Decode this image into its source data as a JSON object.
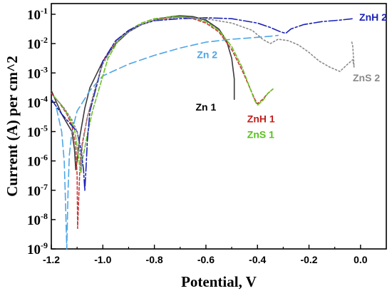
{
  "chart_data": {
    "type": "line",
    "xlabel": "Potential, V",
    "ylabel": "Current (A) per cm^2",
    "yscale": "log",
    "xlim": [
      -1.2,
      0.1
    ],
    "ylim_exp": [
      -9,
      -1
    ],
    "xticks": [
      {
        "value": -1.2,
        "label": "-1.2"
      },
      {
        "value": -1.0,
        "label": "-1.0"
      },
      {
        "value": -0.8,
        "label": "-0.8"
      },
      {
        "value": -0.6,
        "label": "-0.6"
      },
      {
        "value": -0.4,
        "label": "-0.4"
      },
      {
        "value": -0.2,
        "label": "-0.2"
      },
      {
        "value": 0.0,
        "label": "0.0"
      }
    ],
    "yticks": [
      {
        "exp": -1,
        "base": "10",
        "sup": "-1"
      },
      {
        "exp": -2,
        "base": "10",
        "sup": "-2"
      },
      {
        "exp": -3,
        "base": "10",
        "sup": "-3"
      },
      {
        "exp": -4,
        "base": "10",
        "sup": "-4"
      },
      {
        "exp": -5,
        "base": "10",
        "sup": "-5"
      },
      {
        "exp": -6,
        "base": "10",
        "sup": "-6"
      },
      {
        "exp": -7,
        "base": "10",
        "sup": "-7"
      },
      {
        "exp": -8,
        "base": "10",
        "sup": "-8"
      },
      {
        "exp": -9,
        "base": "10",
        "sup": "-9"
      }
    ],
    "grid": false,
    "series": [
      {
        "name": "Zn 1",
        "color": "#3a3a3a",
        "dash": "solid",
        "points": [
          [
            -1.2,
            -3.6
          ],
          [
            -1.18,
            -4.0
          ],
          [
            -1.16,
            -4.4
          ],
          [
            -1.14,
            -4.7
          ],
          [
            -1.12,
            -5.0
          ],
          [
            -1.11,
            -5.6
          ],
          [
            -1.105,
            -6.3
          ],
          [
            -1.1,
            -6.0
          ],
          [
            -1.09,
            -5.2
          ],
          [
            -1.07,
            -4.2
          ],
          [
            -1.05,
            -3.5
          ],
          [
            -1.0,
            -2.6
          ],
          [
            -0.95,
            -2.0
          ],
          [
            -0.9,
            -1.6
          ],
          [
            -0.85,
            -1.35
          ],
          [
            -0.8,
            -1.2
          ],
          [
            -0.75,
            -1.1
          ],
          [
            -0.7,
            -1.05
          ],
          [
            -0.65,
            -1.08
          ],
          [
            -0.6,
            -1.2
          ],
          [
            -0.55,
            -1.5
          ],
          [
            -0.52,
            -1.9
          ],
          [
            -0.5,
            -2.5
          ],
          [
            -0.49,
            -3.2
          ],
          [
            -0.49,
            -3.9
          ]
        ]
      },
      {
        "name": "Zn 2",
        "color": "#4ea6e6",
        "dash": "10,5",
        "points": [
          [
            -1.18,
            -4.2
          ],
          [
            -1.16,
            -5.0
          ],
          [
            -1.15,
            -6.0
          ],
          [
            -1.145,
            -7.4
          ],
          [
            -1.14,
            -9.0
          ],
          [
            -1.135,
            -7.0
          ],
          [
            -1.13,
            -5.8
          ],
          [
            -1.12,
            -5.0
          ],
          [
            -1.1,
            -4.3
          ],
          [
            -1.05,
            -3.6
          ],
          [
            -1.0,
            -3.1
          ],
          [
            -0.9,
            -2.7
          ],
          [
            -0.8,
            -2.4
          ],
          [
            -0.7,
            -2.15
          ],
          [
            -0.6,
            -1.95
          ],
          [
            -0.5,
            -1.85
          ],
          [
            -0.42,
            -1.8
          ],
          [
            -0.35,
            -1.75
          ],
          [
            -0.32,
            -1.72
          ]
        ]
      },
      {
        "name": "ZnH 1",
        "color": "#c83a3a",
        "dash": "4,3",
        "points": [
          [
            -1.2,
            -3.7
          ],
          [
            -1.17,
            -4.0
          ],
          [
            -1.14,
            -4.4
          ],
          [
            -1.12,
            -4.8
          ],
          [
            -1.105,
            -5.5
          ],
          [
            -1.1,
            -6.5
          ],
          [
            -1.098,
            -8.3
          ],
          [
            -1.09,
            -6.4
          ],
          [
            -1.08,
            -5.4
          ],
          [
            -1.06,
            -4.5
          ],
          [
            -1.03,
            -3.6
          ],
          [
            -1.0,
            -2.6
          ],
          [
            -0.95,
            -1.9
          ],
          [
            -0.9,
            -1.55
          ],
          [
            -0.85,
            -1.35
          ],
          [
            -0.8,
            -1.2
          ],
          [
            -0.75,
            -1.12
          ],
          [
            -0.7,
            -1.1
          ],
          [
            -0.65,
            -1.15
          ],
          [
            -0.6,
            -1.3
          ],
          [
            -0.55,
            -1.6
          ],
          [
            -0.5,
            -2.2
          ],
          [
            -0.46,
            -2.9
          ],
          [
            -0.43,
            -3.5
          ],
          [
            -0.41,
            -3.9
          ],
          [
            -0.4,
            -4.05
          ],
          [
            -0.38,
            -3.9
          ],
          [
            -0.36,
            -3.7
          ],
          [
            -0.34,
            -3.55
          ]
        ]
      },
      {
        "name": "ZnS 1",
        "color": "#6cc025",
        "dash": "6,3",
        "points": [
          [
            -1.19,
            -3.8
          ],
          [
            -1.16,
            -4.1
          ],
          [
            -1.13,
            -4.5
          ],
          [
            -1.11,
            -4.9
          ],
          [
            -1.1,
            -5.5
          ],
          [
            -1.09,
            -6.2
          ],
          [
            -1.085,
            -6.4
          ],
          [
            -1.08,
            -6.0
          ],
          [
            -1.06,
            -5.1
          ],
          [
            -1.04,
            -4.3
          ],
          [
            -1.01,
            -3.4
          ],
          [
            -0.98,
            -2.5
          ],
          [
            -0.94,
            -1.9
          ],
          [
            -0.9,
            -1.55
          ],
          [
            -0.85,
            -1.3
          ],
          [
            -0.8,
            -1.15
          ],
          [
            -0.75,
            -1.1
          ],
          [
            -0.7,
            -1.08
          ],
          [
            -0.65,
            -1.12
          ],
          [
            -0.6,
            -1.25
          ],
          [
            -0.55,
            -1.55
          ],
          [
            -0.5,
            -2.1
          ],
          [
            -0.46,
            -2.8
          ],
          [
            -0.43,
            -3.5
          ],
          [
            -0.41,
            -3.95
          ],
          [
            -0.4,
            -4.1
          ],
          [
            -0.38,
            -3.95
          ],
          [
            -0.36,
            -3.7
          ],
          [
            -0.34,
            -3.55
          ]
        ]
      },
      {
        "name": "ZnH 2",
        "color": "#1a22b8",
        "dash": "12,3,3,3",
        "points": [
          [
            -1.2,
            -3.9
          ],
          [
            -1.16,
            -4.4
          ],
          [
            -1.12,
            -4.8
          ],
          [
            -1.1,
            -5.0
          ],
          [
            -1.085,
            -5.6
          ],
          [
            -1.075,
            -6.3
          ],
          [
            -1.07,
            -7.0
          ],
          [
            -1.065,
            -6.2
          ],
          [
            -1.06,
            -5.3
          ],
          [
            -1.05,
            -4.3
          ],
          [
            -1.02,
            -3.3
          ],
          [
            -1.0,
            -2.6
          ],
          [
            -0.95,
            -1.9
          ],
          [
            -0.9,
            -1.55
          ],
          [
            -0.85,
            -1.35
          ],
          [
            -0.8,
            -1.22
          ],
          [
            -0.7,
            -1.15
          ],
          [
            -0.6,
            -1.12
          ],
          [
            -0.5,
            -1.15
          ],
          [
            -0.4,
            -1.3
          ],
          [
            -0.35,
            -1.45
          ],
          [
            -0.31,
            -1.6
          ],
          [
            -0.29,
            -1.65
          ],
          [
            -0.27,
            -1.5
          ],
          [
            -0.22,
            -1.35
          ],
          [
            -0.15,
            -1.25
          ],
          [
            -0.08,
            -1.2
          ],
          [
            -0.03,
            -1.15
          ]
        ]
      },
      {
        "name": "ZnS 2",
        "color": "#8a8a8a",
        "dash": "2,3",
        "points": [
          [
            -1.18,
            -3.9
          ],
          [
            -1.15,
            -4.2
          ],
          [
            -1.12,
            -4.6
          ],
          [
            -1.1,
            -5.0
          ],
          [
            -1.09,
            -5.6
          ],
          [
            -1.085,
            -6.3
          ],
          [
            -1.08,
            -5.5
          ],
          [
            -1.06,
            -4.5
          ],
          [
            -1.03,
            -3.5
          ],
          [
            -1.0,
            -2.7
          ],
          [
            -0.95,
            -1.95
          ],
          [
            -0.9,
            -1.6
          ],
          [
            -0.85,
            -1.35
          ],
          [
            -0.8,
            -1.2
          ],
          [
            -0.7,
            -1.1
          ],
          [
            -0.6,
            -1.15
          ],
          [
            -0.5,
            -1.3
          ],
          [
            -0.42,
            -1.55
          ],
          [
            -0.38,
            -1.85
          ],
          [
            -0.35,
            -2.0
          ],
          [
            -0.32,
            -1.85
          ],
          [
            -0.28,
            -1.9
          ],
          [
            -0.24,
            -2.05
          ],
          [
            -0.2,
            -2.3
          ],
          [
            -0.16,
            -2.6
          ],
          [
            -0.12,
            -2.8
          ],
          [
            -0.08,
            -2.95
          ],
          [
            -0.05,
            -2.7
          ],
          [
            -0.03,
            -2.55
          ],
          [
            -0.025,
            -2.8
          ],
          [
            -0.03,
            -2.1
          ],
          [
            -0.035,
            -1.9
          ]
        ]
      }
    ],
    "annotations": [
      {
        "text": "ZnH 2",
        "color": "#1a22b8",
        "x": -0.005,
        "yexp": -1.22
      },
      {
        "text": "Zn 2",
        "color": "#4ea6e6",
        "x": -0.635,
        "yexp": -2.5
      },
      {
        "text": "ZnS 2",
        "color": "#8a8a8a",
        "x": -0.03,
        "yexp": -3.28
      },
      {
        "text": "Zn 1",
        "color": "#000000",
        "x": -0.64,
        "yexp": -4.28
      },
      {
        "text": "ZnH 1",
        "color": "#c0201c",
        "x": -0.44,
        "yexp": -4.68
      },
      {
        "text": "ZnS 1",
        "color": "#58c21d",
        "x": -0.44,
        "yexp": -5.22
      }
    ]
  }
}
